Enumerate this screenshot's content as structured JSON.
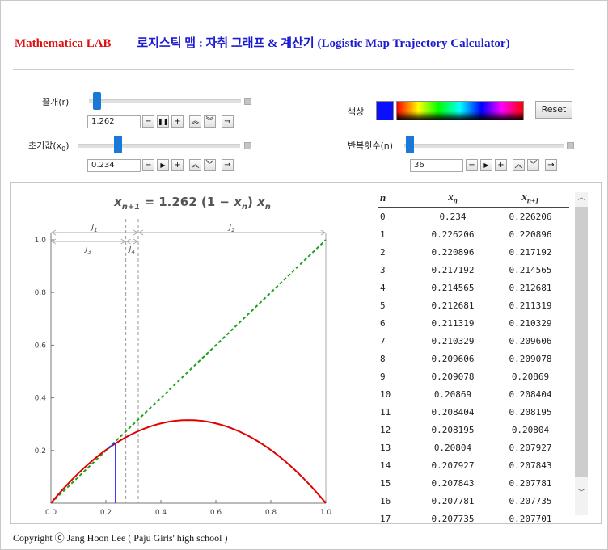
{
  "header": {
    "lab": "Mathematica LAB",
    "title": "로지스틱 맵 : 자취 그래프 & 계산기 (Logistic Map Trajectory Calculator)"
  },
  "controls": {
    "r": {
      "label": "끌개(r)",
      "value": "1.262",
      "slider_fraction": 0.03
    },
    "x0": {
      "label": "초기값(x",
      "sub": "0",
      "close": ")",
      "value": "0.234",
      "slider_fraction": 0.234
    },
    "color": {
      "label": "색상",
      "value": "#0a10ff"
    },
    "iterations": {
      "label": "반복횟수(n)",
      "value": "36",
      "slider_fraction": 0.01
    },
    "reset_label": "Reset",
    "button_glyphs": {
      "minus": "−",
      "pause": "❚❚",
      "play": "▶",
      "plus": "+",
      "faster": "︽",
      "slower": "︾",
      "direction": "→"
    }
  },
  "chart_data": {
    "type": "line",
    "title": "x_{n+1} = 1.262 (1 − x_n) x_n",
    "title_parts": {
      "lhs": "x",
      "lhs_sub": "n+1",
      "eq": " = 1.262 (1 − ",
      "mid": "x",
      "mid_sub": "n",
      "rhs": ") ",
      "end": "x",
      "end_sub": "n"
    },
    "xlim": [
      0,
      1
    ],
    "ylim": [
      0,
      1
    ],
    "x_ticks": [
      "0.0",
      "0.2",
      "0.4",
      "0.6",
      "0.8",
      "1.0"
    ],
    "y_ticks": [
      "0.2",
      "0.4",
      "0.6",
      "0.8",
      "1.0"
    ],
    "r": 1.262,
    "x0": 0.234,
    "fixed_point": 0.2076,
    "series": [
      {
        "kind": "logistic-curve",
        "color": "#e00000"
      },
      {
        "kind": "identity-dashed",
        "color": "#20a020"
      },
      {
        "kind": "trajectory",
        "color": "#3030ff"
      }
    ],
    "intervals": {
      "J1": {
        "label": "J",
        "sub": "1",
        "range": [
          0,
          0.3177
        ]
      },
      "J2": {
        "label": "J",
        "sub": "2",
        "range": [
          0.3177,
          1
        ]
      },
      "J3": {
        "label": "J",
        "sub": "3",
        "range": [
          0,
          0.2724
        ]
      },
      "J4": {
        "label": "J",
        "sub": "4",
        "range": [
          0.2724,
          0.3177
        ]
      }
    }
  },
  "table": {
    "headers": {
      "n": "n",
      "xn": "x",
      "xn_sub": "n",
      "xn1": "x",
      "xn1_sub": "n+1"
    },
    "rows": [
      [
        "0",
        "0.234",
        "0.226206"
      ],
      [
        "1",
        "0.226206",
        "0.220896"
      ],
      [
        "2",
        "0.220896",
        "0.217192"
      ],
      [
        "3",
        "0.217192",
        "0.214565"
      ],
      [
        "4",
        "0.214565",
        "0.212681"
      ],
      [
        "5",
        "0.212681",
        "0.211319"
      ],
      [
        "6",
        "0.211319",
        "0.210329"
      ],
      [
        "7",
        "0.210329",
        "0.209606"
      ],
      [
        "8",
        "0.209606",
        "0.209078"
      ],
      [
        "9",
        "0.209078",
        "0.20869"
      ],
      [
        "10",
        "0.20869",
        "0.208404"
      ],
      [
        "11",
        "0.208404",
        "0.208195"
      ],
      [
        "12",
        "0.208195",
        "0.20804"
      ],
      [
        "13",
        "0.20804",
        "0.207927"
      ],
      [
        "14",
        "0.207927",
        "0.207843"
      ],
      [
        "15",
        "0.207843",
        "0.207781"
      ],
      [
        "16",
        "0.207781",
        "0.207735"
      ],
      [
        "17",
        "0.207735",
        "0.207701"
      ]
    ]
  },
  "copyright": "Copyright ⓒ Jang Hoon Lee ( Paju Girls' high school )"
}
